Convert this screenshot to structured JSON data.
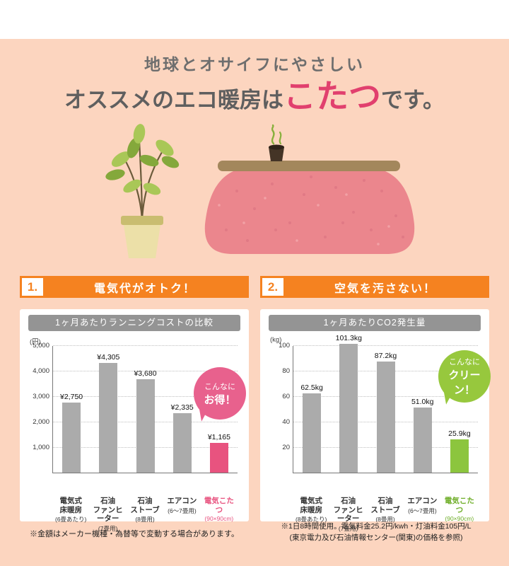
{
  "page": {
    "bg_color": "#fcd5bf",
    "accent_orange": "#f58220",
    "accent_pink": "#e1406e",
    "accent_green": "#8cc53e",
    "bar_gray": "#ababab"
  },
  "title": {
    "line1": "地球とオサイフにやさしい",
    "line2_pre": "オススメのエコ暖房は",
    "line2_highlight": "こたつ",
    "line2_post": "です。"
  },
  "sections": [
    {
      "number": "1.",
      "heading": "電気代がオトク！"
    },
    {
      "number": "2.",
      "heading": "空気を汚さない！"
    }
  ],
  "chart_data": [
    {
      "type": "bar",
      "title": "1ヶ月あたりランニングコストの比較",
      "unit": "(円)",
      "ylim": [
        0,
        5000
      ],
      "axis_max": 5000,
      "ticks": [
        {
          "label": "5,000",
          "value": 5000
        },
        {
          "label": "4,000",
          "value": 4000
        },
        {
          "label": "3,000",
          "value": 3000
        },
        {
          "label": "2,000",
          "value": 2000
        },
        {
          "label": "1,000",
          "value": 1000
        }
      ],
      "bars": [
        {
          "name": "電気式\n床暖房",
          "sub": "(6畳あたり)",
          "value": 2750,
          "label": "¥2,750",
          "color": "#ababab"
        },
        {
          "name": "石油\nファンヒーター",
          "sub": "(7畳用)",
          "value": 4305,
          "label": "¥4,305",
          "color": "#ababab"
        },
        {
          "name": "石油\nストーブ",
          "sub": "(8畳用)",
          "value": 3680,
          "label": "¥3,680",
          "color": "#ababab"
        },
        {
          "name": "エアコン",
          "sub": "(6〜7畳用)",
          "value": 2335,
          "label": "¥2,335",
          "color": "#ababab"
        },
        {
          "name": "電気こたつ",
          "sub": "(90×90cm)",
          "value": 1165,
          "label": "¥1,165",
          "color": "#e8537f",
          "name_color": "#e8537f"
        }
      ],
      "badge": {
        "line1": "こんなに",
        "line2": "お得！",
        "color": "#e8618d"
      }
    },
    {
      "type": "bar",
      "title": "1ヶ月あたりCO2発生量",
      "unit": "(kg)",
      "ylim": [
        0,
        100
      ],
      "axis_max": 100,
      "ticks": [
        {
          "label": "100",
          "value": 100
        },
        {
          "label": "80",
          "value": 80
        },
        {
          "label": "60",
          "value": 60
        },
        {
          "label": "40",
          "value": 40
        },
        {
          "label": "20",
          "value": 20
        }
      ],
      "bars": [
        {
          "name": "電気式\n床暖房",
          "sub": "(8畳あたり)",
          "value": 62.5,
          "label": "62.5kg",
          "color": "#ababab"
        },
        {
          "name": "石油\nファンヒーター",
          "sub": "(7畳用)",
          "value": 101.3,
          "label": "101.3kg",
          "color": "#ababab"
        },
        {
          "name": "石油\nストーブ",
          "sub": "(8畳用)",
          "value": 87.2,
          "label": "87.2kg",
          "color": "#ababab"
        },
        {
          "name": "エアコン",
          "sub": "(6〜7畳用)",
          "value": 51.0,
          "label": "51.0kg",
          "color": "#ababab"
        },
        {
          "name": "電気こたつ",
          "sub": "(90×90cm)",
          "value": 25.9,
          "label": "25.9kg",
          "color": "#8cc53e",
          "name_color": "#6fae29"
        }
      ],
      "badge": {
        "line1": "こんなに",
        "line2": "クリーン！",
        "color": "#97c83d"
      }
    }
  ],
  "footnotes": {
    "left": "※金額はメーカー機種・為替等で変動する場合があります。",
    "right_line1": "※1日8時間使用。電気料金25.2円/kwh・灯油料金105円/L",
    "right_line2": "(東京電力及び石油情報センター(関東)の価格を参照)"
  },
  "illustration": {
    "name": "kotatsu-with-plant-illustration"
  }
}
